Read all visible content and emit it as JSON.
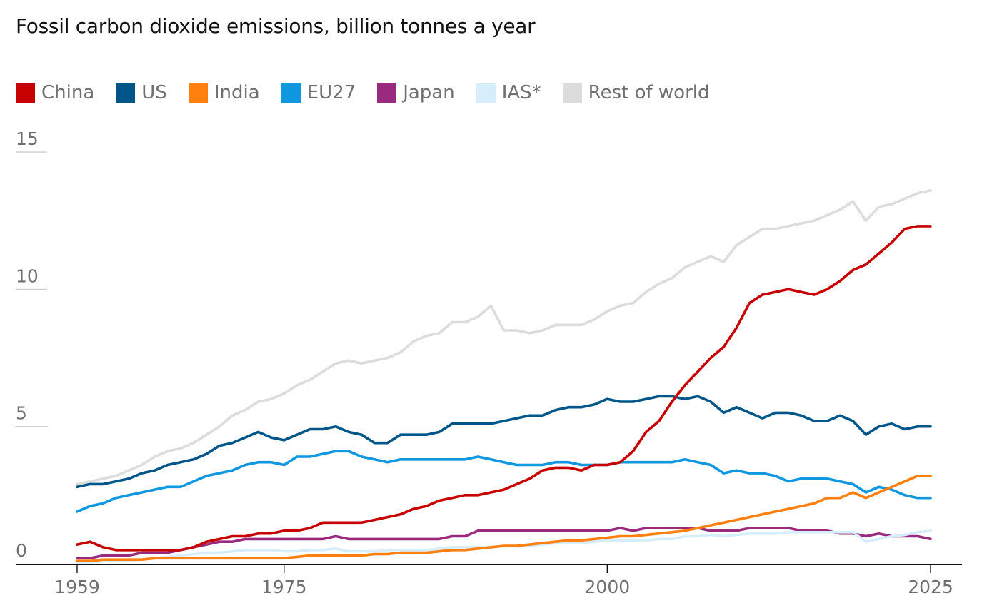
{
  "chart_data": {
    "type": "line",
    "title": "Fossil carbon dioxide emissions, billion tonnes a year",
    "xlabel": "",
    "ylabel": "",
    "xlim": [
      1959,
      2025
    ],
    "ylim": [
      0,
      15
    ],
    "x_ticks": [
      "1959",
      "1975",
      "2000",
      "2025"
    ],
    "y_ticks": [
      "0",
      "5",
      "10",
      "15"
    ],
    "grid": "horizontal",
    "legend_position": "top-left",
    "x": [
      1959,
      1960,
      1961,
      1962,
      1963,
      1964,
      1965,
      1966,
      1967,
      1968,
      1969,
      1970,
      1971,
      1972,
      1973,
      1974,
      1975,
      1976,
      1977,
      1978,
      1979,
      1980,
      1981,
      1982,
      1983,
      1984,
      1985,
      1986,
      1987,
      1988,
      1989,
      1990,
      1991,
      1992,
      1993,
      1994,
      1995,
      1996,
      1997,
      1998,
      1999,
      2000,
      2001,
      2002,
      2003,
      2004,
      2005,
      2006,
      2007,
      2008,
      2009,
      2010,
      2011,
      2012,
      2013,
      2014,
      2015,
      2016,
      2017,
      2018,
      2019,
      2020,
      2021,
      2022,
      2023,
      2024,
      2025
    ],
    "series": [
      {
        "name": "Rest of world",
        "color": "#dcdcdc",
        "values": [
          2.9,
          3.0,
          3.1,
          3.2,
          3.4,
          3.6,
          3.9,
          4.1,
          4.2,
          4.4,
          4.7,
          5.0,
          5.4,
          5.6,
          5.9,
          6.0,
          6.2,
          6.5,
          6.7,
          7.0,
          7.3,
          7.4,
          7.3,
          7.4,
          7.5,
          7.7,
          8.1,
          8.3,
          8.4,
          8.8,
          8.8,
          9.0,
          9.4,
          8.5,
          8.5,
          8.4,
          8.5,
          8.7,
          8.7,
          8.7,
          8.9,
          9.2,
          9.4,
          9.5,
          9.9,
          10.2,
          10.4,
          10.8,
          11.0,
          11.2,
          11.0,
          11.6,
          11.9,
          12.2,
          12.2,
          12.3,
          12.4,
          12.5,
          12.7,
          12.9,
          13.2,
          12.5,
          13.0,
          13.1,
          13.3,
          13.5,
          13.6
        ]
      },
      {
        "name": "US",
        "color": "#005689",
        "values": [
          2.8,
          2.9,
          2.9,
          3.0,
          3.1,
          3.3,
          3.4,
          3.6,
          3.7,
          3.8,
          4.0,
          4.3,
          4.4,
          4.6,
          4.8,
          4.6,
          4.5,
          4.7,
          4.9,
          4.9,
          5.0,
          4.8,
          4.7,
          4.4,
          4.4,
          4.7,
          4.7,
          4.7,
          4.8,
          5.1,
          5.1,
          5.1,
          5.1,
          5.2,
          5.3,
          5.4,
          5.4,
          5.6,
          5.7,
          5.7,
          5.8,
          6.0,
          5.9,
          5.9,
          6.0,
          6.1,
          6.1,
          6.0,
          6.1,
          5.9,
          5.5,
          5.7,
          5.5,
          5.3,
          5.5,
          5.5,
          5.4,
          5.2,
          5.2,
          5.4,
          5.2,
          4.7,
          5.0,
          5.1,
          4.9,
          5.0,
          5.0
        ]
      },
      {
        "name": "EU27",
        "color": "#0f97df",
        "values": [
          1.9,
          2.1,
          2.2,
          2.4,
          2.5,
          2.6,
          2.7,
          2.8,
          2.8,
          3.0,
          3.2,
          3.3,
          3.4,
          3.6,
          3.7,
          3.7,
          3.6,
          3.9,
          3.9,
          4.0,
          4.1,
          4.1,
          3.9,
          3.8,
          3.7,
          3.8,
          3.8,
          3.8,
          3.8,
          3.8,
          3.8,
          3.9,
          3.8,
          3.7,
          3.6,
          3.6,
          3.6,
          3.7,
          3.7,
          3.6,
          3.6,
          3.6,
          3.7,
          3.7,
          3.7,
          3.7,
          3.7,
          3.8,
          3.7,
          3.6,
          3.3,
          3.4,
          3.3,
          3.3,
          3.2,
          3.0,
          3.1,
          3.1,
          3.1,
          3.0,
          2.9,
          2.6,
          2.8,
          2.7,
          2.5,
          2.4,
          2.4
        ]
      },
      {
        "name": "Japan",
        "color": "#9a2a7d",
        "values": [
          0.2,
          0.2,
          0.3,
          0.3,
          0.3,
          0.4,
          0.4,
          0.4,
          0.5,
          0.6,
          0.7,
          0.8,
          0.8,
          0.9,
          0.9,
          0.9,
          0.9,
          0.9,
          0.9,
          0.9,
          1.0,
          0.9,
          0.9,
          0.9,
          0.9,
          0.9,
          0.9,
          0.9,
          0.9,
          1.0,
          1.0,
          1.2,
          1.2,
          1.2,
          1.2,
          1.2,
          1.2,
          1.2,
          1.2,
          1.2,
          1.2,
          1.2,
          1.3,
          1.2,
          1.3,
          1.3,
          1.3,
          1.3,
          1.3,
          1.2,
          1.2,
          1.2,
          1.3,
          1.3,
          1.3,
          1.3,
          1.2,
          1.2,
          1.2,
          1.1,
          1.1,
          1.0,
          1.1,
          1.0,
          1.0,
          1.0,
          0.9
        ]
      },
      {
        "name": "IAS*",
        "color": "#d6eefb",
        "values": [
          0.05,
          0.05,
          0.1,
          0.1,
          0.1,
          0.15,
          0.2,
          0.25,
          0.3,
          0.35,
          0.4,
          0.4,
          0.45,
          0.5,
          0.5,
          0.5,
          0.45,
          0.45,
          0.5,
          0.5,
          0.55,
          0.45,
          0.45,
          0.45,
          0.5,
          0.5,
          0.5,
          0.5,
          0.55,
          0.6,
          0.6,
          0.6,
          0.6,
          0.65,
          0.65,
          0.65,
          0.7,
          0.75,
          0.75,
          0.75,
          0.8,
          0.85,
          0.85,
          0.85,
          0.85,
          0.9,
          0.9,
          1.0,
          1.0,
          1.05,
          1.0,
          1.05,
          1.1,
          1.1,
          1.1,
          1.15,
          1.15,
          1.15,
          1.15,
          1.15,
          1.15,
          0.8,
          0.9,
          1.0,
          1.05,
          1.15,
          1.2
        ]
      },
      {
        "name": "India",
        "color": "#ff7f0f",
        "values": [
          0.1,
          0.1,
          0.15,
          0.15,
          0.15,
          0.15,
          0.2,
          0.2,
          0.2,
          0.2,
          0.2,
          0.2,
          0.2,
          0.2,
          0.2,
          0.2,
          0.2,
          0.25,
          0.3,
          0.3,
          0.3,
          0.3,
          0.3,
          0.35,
          0.35,
          0.4,
          0.4,
          0.4,
          0.45,
          0.5,
          0.5,
          0.55,
          0.6,
          0.65,
          0.65,
          0.7,
          0.75,
          0.8,
          0.85,
          0.85,
          0.9,
          0.95,
          1.0,
          1.0,
          1.05,
          1.1,
          1.15,
          1.2,
          1.3,
          1.4,
          1.5,
          1.6,
          1.7,
          1.8,
          1.9,
          2.0,
          2.1,
          2.2,
          2.4,
          2.4,
          2.6,
          2.4,
          2.6,
          2.8,
          3.0,
          3.2,
          3.2
        ]
      },
      {
        "name": "China",
        "color": "#c70000",
        "values": [
          0.7,
          0.8,
          0.6,
          0.5,
          0.5,
          0.5,
          0.5,
          0.5,
          0.5,
          0.6,
          0.8,
          0.9,
          1.0,
          1.0,
          1.1,
          1.1,
          1.2,
          1.2,
          1.3,
          1.5,
          1.5,
          1.5,
          1.5,
          1.6,
          1.7,
          1.8,
          2.0,
          2.1,
          2.3,
          2.4,
          2.5,
          2.5,
          2.6,
          2.7,
          2.9,
          3.1,
          3.4,
          3.5,
          3.5,
          3.4,
          3.6,
          3.6,
          3.7,
          4.1,
          4.8,
          5.2,
          5.9,
          6.5,
          7.0,
          7.5,
          7.9,
          8.6,
          9.5,
          9.8,
          9.9,
          10.0,
          9.9,
          9.8,
          10.0,
          10.3,
          10.7,
          10.9,
          11.3,
          11.7,
          12.2,
          12.3,
          12.3
        ]
      }
    ]
  },
  "legend": [
    {
      "label": "China",
      "color": "#c70000"
    },
    {
      "label": "US",
      "color": "#005689"
    },
    {
      "label": "India",
      "color": "#ff7f0f"
    },
    {
      "label": "EU27",
      "color": "#0f97df"
    },
    {
      "label": "Japan",
      "color": "#9a2a7d"
    },
    {
      "label": "IAS*",
      "color": "#d6eefb"
    },
    {
      "label": "Rest of world",
      "color": "#dcdcdc"
    }
  ]
}
